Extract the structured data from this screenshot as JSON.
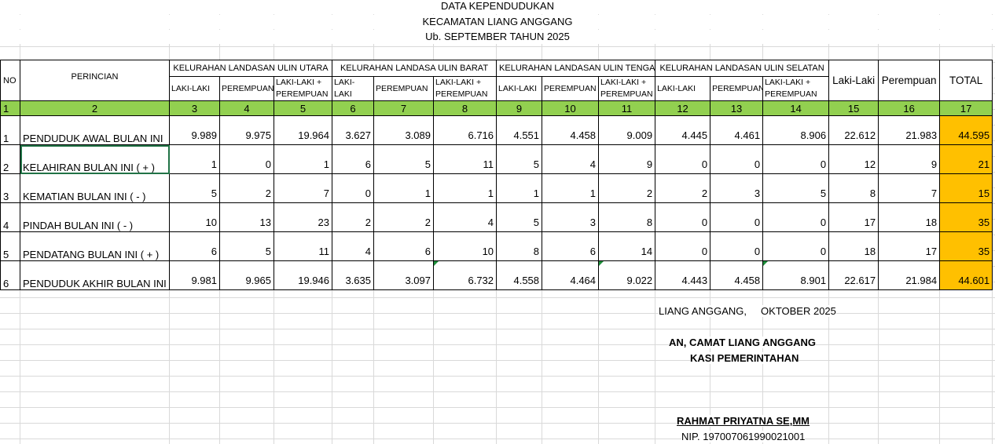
{
  "title": {
    "line1": "DATA KEPENDUDUKAN",
    "line2": "KECAMATAN LIANG ANGGANG",
    "line3": "Ub. SEPTEMBER TAHUN 2025"
  },
  "header": {
    "no": "NO",
    "perincian": "PERINCIAN",
    "groups": [
      "KELURAHAN LANDASAN ULIN UTARA",
      "KELURAHAN LANDASA ULIN BARAT",
      "KELURAHAN LANDASAN ULIN TENGAH",
      "KELURAHAN LANDASAN ULIN SELATAN"
    ],
    "sub": [
      "LAKI-LAKI",
      "PEREMPUAN",
      "LAKI-LAKI + PEREMPUAN"
    ],
    "laki": "Laki-Laki",
    "perempuan": "Perempuan",
    "total": "TOTAL",
    "colnums": [
      "1",
      "2",
      "3",
      "4",
      "5",
      "6",
      "7",
      "8",
      "9",
      "10",
      "11",
      "12",
      "13",
      "14",
      "15",
      "16",
      "17"
    ]
  },
  "rows": [
    {
      "no": "1",
      "label": "PENDUDUK AWAL BULAN INI",
      "values": [
        "9.989",
        "9.975",
        "19.964",
        "3.627",
        "3.089",
        "6.716",
        "4.551",
        "4.458",
        "9.009",
        "4.445",
        "4.461",
        "8.906",
        "22.612",
        "21.983",
        "44.595"
      ]
    },
    {
      "no": "2",
      "label": "KELAHIRAN BULAN INI ( + )",
      "values": [
        "1",
        "0",
        "1",
        "6",
        "5",
        "11",
        "5",
        "4",
        "9",
        "0",
        "0",
        "0",
        "12",
        "9",
        "21"
      ]
    },
    {
      "no": "3",
      "label": "KEMATIAN BULAN INI ( - )",
      "values": [
        "5",
        "2",
        "7",
        "0",
        "1",
        "1",
        "1",
        "1",
        "2",
        "2",
        "3",
        "5",
        "8",
        "7",
        "15"
      ]
    },
    {
      "no": "4",
      "label": "PINDAH BULAN INI ( - )",
      "values": [
        "10",
        "13",
        "23",
        "2",
        "2",
        "4",
        "5",
        "3",
        "8",
        "0",
        "0",
        "0",
        "17",
        "18",
        "35"
      ]
    },
    {
      "no": "5",
      "label": "PENDATANG BULAN INI ( + )",
      "values": [
        "6",
        "5",
        "11",
        "4",
        "6",
        "10",
        "8",
        "6",
        "14",
        "0",
        "0",
        "0",
        "18",
        "17",
        "35"
      ]
    },
    {
      "no": "6",
      "label": "PENDUDUK AKHIR BULAN INI",
      "values": [
        "9.981",
        "9.965",
        "19.946",
        "3.635",
        "3.097",
        "6.732",
        "4.558",
        "4.464",
        "9.022",
        "4.443",
        "4.458",
        "8.901",
        "22.617",
        "21.984",
        "44.601"
      ]
    }
  ],
  "footer": {
    "place_date": "LIANG ANGGANG,     OKTOBER 2025",
    "role1": "AN, CAMAT LIANG ANGGANG",
    "role2": "KASI PEMERINTAHAN",
    "name": "RAHMAT PRIYATNA SE,MM",
    "nip": "NIP. 197007061990021001"
  },
  "colors": {
    "green_header": "#92d050",
    "total_fill": "#ffc000",
    "selection": "#217346"
  }
}
